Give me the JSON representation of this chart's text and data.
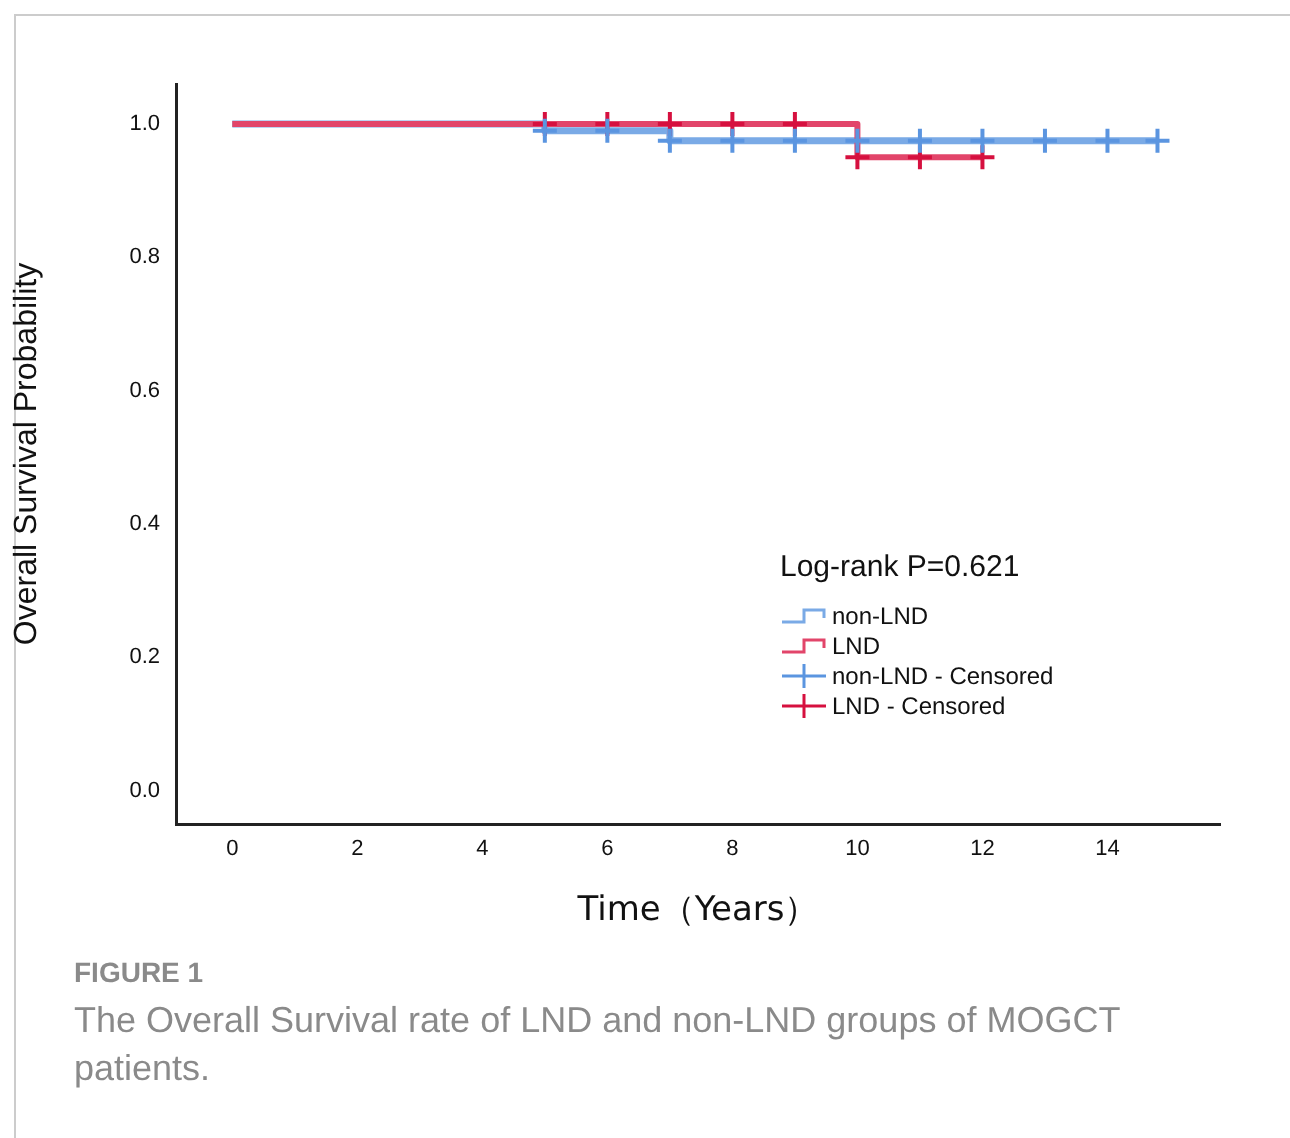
{
  "chart_data": {
    "type": "step",
    "xlabel": "Time（Years）",
    "ylabel": "Overall Survival Probability",
    "legend_title": "Log-rank P=0.621",
    "legend": "bottom right",
    "grid": false,
    "xlim": [
      -0.9,
      15.8
    ],
    "xticks": [
      0,
      2,
      4,
      6,
      8,
      10,
      12,
      14
    ],
    "ylim": [
      -0.05,
      1.06
    ],
    "yticks": [
      {
        "value": 0,
        "label": "0.0"
      },
      {
        "value": 0.2,
        "label": "0.2"
      },
      {
        "value": 0.4,
        "label": "0.4"
      },
      {
        "value": 0.6,
        "label": "0.6"
      },
      {
        "value": 0.8,
        "label": "0.8"
      },
      {
        "value": 1,
        "label": "1.0"
      }
    ],
    "series": [
      {
        "name": "non-LND",
        "type": "step",
        "color": "#7aaae6",
        "marker": "none",
        "x": [
          0,
          5,
          7,
          14.8
        ],
        "values": [
          1,
          0.99,
          0.975,
          0.975
        ]
      },
      {
        "name": "LND",
        "type": "step",
        "color": "#e2456a",
        "marker": "none",
        "x": [
          0,
          10,
          12
        ],
        "values": [
          1,
          0.95,
          0.95
        ]
      },
      {
        "name": "non-LND -  Censored",
        "type": "scatter",
        "color": "#5b95e0",
        "marker": "cross",
        "x": [
          5,
          6,
          7,
          8,
          9,
          10,
          11,
          12,
          13,
          14,
          14.8
        ],
        "values": [
          0.99,
          0.99,
          0.975,
          0.975,
          0.975,
          0.975,
          0.975,
          0.975,
          0.975,
          0.975,
          0.975
        ]
      },
      {
        "name": "LND -  Censored",
        "type": "scatter",
        "color": "#d6103f",
        "marker": "cross",
        "x": [
          5,
          6,
          7,
          8,
          9,
          10,
          11,
          12
        ],
        "values": [
          1,
          1,
          1,
          1,
          1,
          0.95,
          0.95,
          0.95
        ]
      }
    ],
    "annotations": [
      "FIGURE 1",
      "The Overall Survival rate of LND and non-LND groups of MOGCT patients."
    ]
  }
}
